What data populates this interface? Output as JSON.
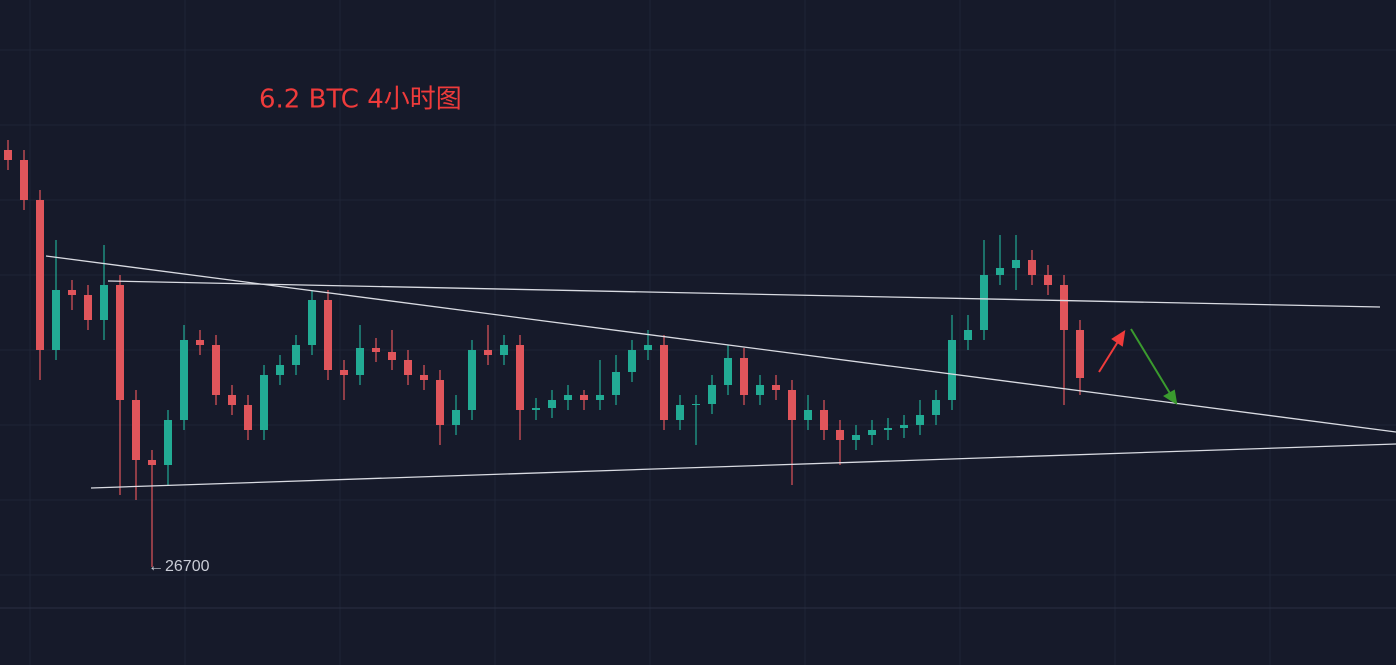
{
  "chart_data": {
    "type": "candlestick",
    "title": "6.2 BTC 4小时图",
    "low_label": 26700,
    "ylim": [
      26210,
      29535
    ],
    "grid": true,
    "up_color": "#22ab94",
    "down_color": "#e0555b",
    "categories": [
      null,
      null,
      null,
      null,
      null,
      null,
      null,
      null,
      null,
      null,
      null,
      null,
      null,
      null,
      null,
      null,
      null,
      null,
      null,
      null,
      null,
      null,
      null,
      null,
      null,
      null,
      null,
      null,
      null,
      null,
      null,
      null,
      null,
      null,
      null,
      null,
      null,
      null,
      null,
      null,
      null,
      null,
      null,
      null,
      null,
      null,
      null,
      null,
      null,
      null,
      null,
      null,
      null,
      null,
      null,
      null,
      null,
      null,
      null,
      null,
      null,
      null,
      null,
      null,
      null,
      null,
      null,
      null
    ],
    "open": [
      28785,
      28735,
      28535,
      27785,
      28085,
      28060,
      27935,
      28110,
      27535,
      27235,
      27210,
      27435,
      27835,
      27810,
      27560,
      27510,
      27385,
      27660,
      27710,
      27810,
      28035,
      27685,
      27660,
      27795,
      27775,
      27735,
      27660,
      27635,
      27410,
      27485,
      27785,
      27760,
      27810,
      27485,
      27495,
      27535,
      27560,
      27535,
      27560,
      27675,
      27785,
      27810,
      27435,
      27510,
      27515,
      27610,
      27745,
      27560,
      27610,
      27585,
      27435,
      27485,
      27385,
      27335,
      27360,
      27385,
      27395,
      27410,
      27460,
      27535,
      27835,
      27885,
      28160,
      28195,
      28235,
      28160,
      28110,
      27885
    ],
    "high": [
      28835,
      28785,
      28585,
      28335,
      28135,
      28110,
      28310,
      28160,
      27585,
      27285,
      27485,
      27910,
      27885,
      27860,
      27610,
      27560,
      27710,
      27760,
      27860,
      28085,
      28085,
      27735,
      27910,
      27845,
      27885,
      27785,
      27710,
      27685,
      27560,
      27835,
      27910,
      27860,
      27860,
      27545,
      27585,
      27610,
      27585,
      27735,
      27760,
      27835,
      27885,
      27860,
      27560,
      27560,
      27660,
      27810,
      27795,
      27660,
      27660,
      27635,
      27560,
      27535,
      27435,
      27410,
      27435,
      27445,
      27460,
      27535,
      27585,
      27960,
      27960,
      28335,
      28360,
      28360,
      28285,
      28210,
      28160,
      27935
    ],
    "low": [
      28685,
      28485,
      27635,
      27735,
      27985,
      27885,
      27835,
      27060,
      27035,
      26700,
      27110,
      27385,
      27760,
      27510,
      27460,
      27335,
      27335,
      27610,
      27660,
      27760,
      27635,
      27535,
      27610,
      27725,
      27685,
      27610,
      27585,
      27310,
      27360,
      27435,
      27710,
      27710,
      27335,
      27435,
      27445,
      27485,
      27485,
      27485,
      27510,
      27625,
      27735,
      27385,
      27385,
      27310,
      27465,
      27560,
      27510,
      27510,
      27535,
      27110,
      27385,
      27335,
      27210,
      27285,
      27310,
      27335,
      27345,
      27360,
      27410,
      27485,
      27785,
      27835,
      28110,
      28085,
      28110,
      28060,
      27510,
      27560
    ],
    "close": [
      28735,
      28535,
      27785,
      28085,
      28060,
      27935,
      28110,
      27535,
      27235,
      27210,
      27435,
      27835,
      27810,
      27560,
      27510,
      27385,
      27660,
      27710,
      27810,
      28035,
      27685,
      27660,
      27795,
      27775,
      27735,
      27660,
      27635,
      27410,
      27485,
      27785,
      27760,
      27810,
      27485,
      27495,
      27535,
      27560,
      27535,
      27560,
      27675,
      27785,
      27810,
      27435,
      27510,
      27515,
      27610,
      27745,
      27560,
      27610,
      27585,
      27435,
      27485,
      27385,
      27335,
      27360,
      27385,
      27395,
      27410,
      27460,
      27535,
      27835,
      27885,
      28160,
      28195,
      28235,
      28160,
      28110,
      27885,
      27645
    ]
  }
}
